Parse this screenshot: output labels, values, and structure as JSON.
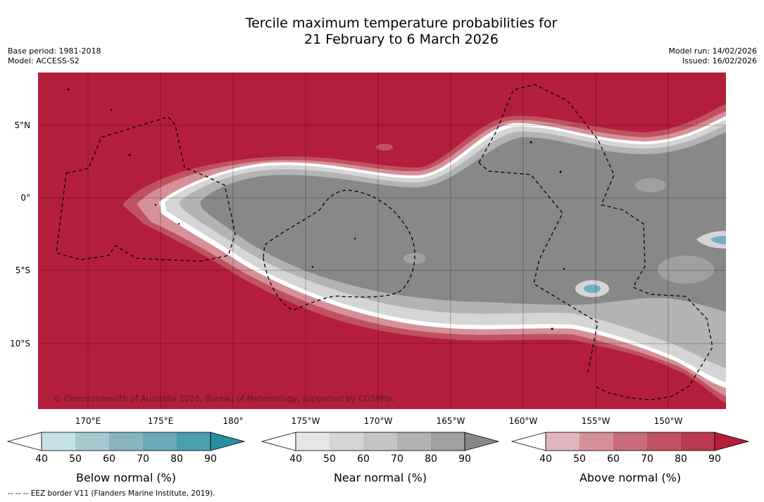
{
  "title": {
    "line1": "Tercile maximum temperature probabilities for",
    "line2": "21 February to 6 March 2026"
  },
  "meta": {
    "base_period": "Base period: 1981-2018",
    "model": "Model: ACCESS-S2",
    "model_run": "Model run: 14/02/2026",
    "issued": "Issued: 16/02/2026"
  },
  "map": {
    "latitude_labels": [
      "5°N",
      "0°",
      "5°S",
      "10°S"
    ],
    "longitude_labels": [
      "170°E",
      "175°E",
      "180°",
      "175°W",
      "170°W",
      "165°W",
      "160°W",
      "155°W",
      "150°W"
    ],
    "copyright": "© Commonwealth of Australia 2026, Bureau of Meteorology, supported by COSPPac",
    "colors": {
      "above_90": "#b31e3a",
      "near_90": "#888888",
      "below_80": "#6fb0c2"
    }
  },
  "colorbars": [
    {
      "title": "Below normal (%)",
      "ticks": [
        "40",
        "50",
        "60",
        "70",
        "80",
        "90"
      ],
      "colors": [
        "#c6e0e7",
        "#a6c8cf",
        "#88b5c0",
        "#6aa9b8",
        "#499fb0",
        "#2a8fa3"
      ]
    },
    {
      "title": "Near normal (%)",
      "ticks": [
        "40",
        "50",
        "60",
        "70",
        "80",
        "90"
      ],
      "colors": [
        "#e6e6e6",
        "#d5d5d5",
        "#c4c4c4",
        "#b3b3b3",
        "#a0a0a0",
        "#888888"
      ]
    },
    {
      "title": "Above normal (%)",
      "ticks": [
        "40",
        "50",
        "60",
        "70",
        "80",
        "90"
      ],
      "colors": [
        "#e0b5bc",
        "#d59098",
        "#c96d7b",
        "#c0525f",
        "#b83a4c",
        "#b31e3a"
      ]
    }
  ],
  "footnote": "--  --  -- EEZ border V11 (Flanders Marine Institute, 2019)."
}
